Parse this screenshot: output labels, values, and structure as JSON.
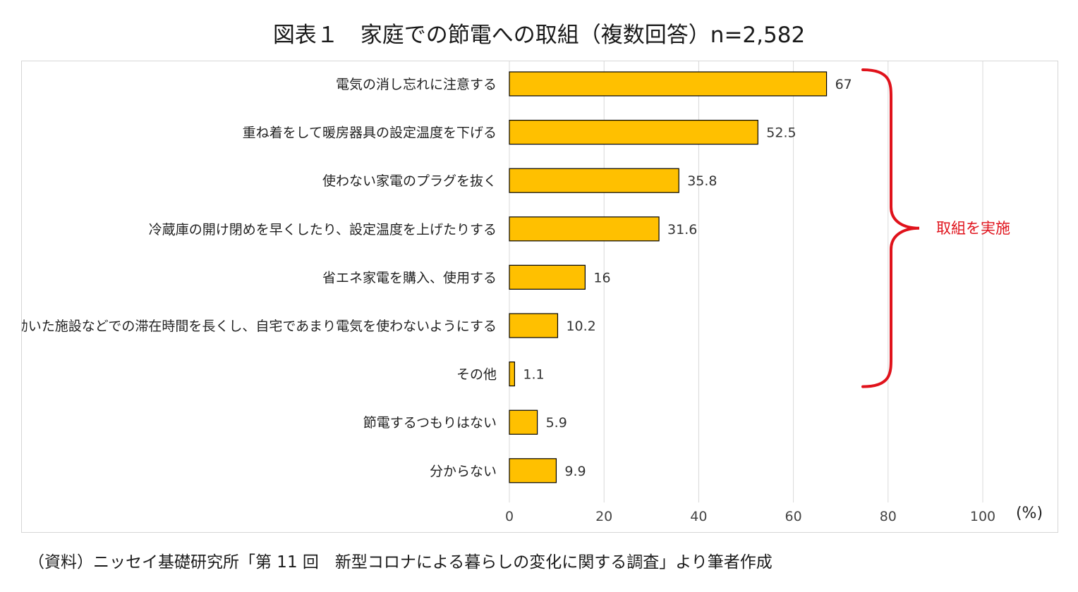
{
  "title": "図表１　家庭での節電への取組（複数回答）n=2,582",
  "source": "（資料）ニッセイ基礎研究所「第 11 回　新型コロナによる暮らしの変化に関する調査」より筆者作成",
  "chart_data": {
    "type": "bar",
    "orientation": "horizontal",
    "categories": [
      "電気の消し忘れに注意する",
      "重ね着をして暖房器具の設定温度を下げる",
      "使わない家電のプラグを抜く",
      "冷蔵庫の開け閉めを早くしたり、設定温度を上げたりする",
      "省エネ家電を購入、使用する",
      "空調の効いた施設などでの滞在時間を長くし、自宅であまり電気を使わないようにする",
      "その他",
      "節電するつもりはない",
      "分からない"
    ],
    "values": [
      67,
      52.5,
      35.8,
      31.6,
      16,
      10.2,
      1.1,
      5.9,
      9.9
    ],
    "value_labels": [
      "67",
      "52.5",
      "35.8",
      "31.6",
      "16",
      "10.2",
      "1.1",
      "5.9",
      "9.9"
    ],
    "xlim": [
      0,
      100
    ],
    "xticks": [
      "0",
      "20",
      "40",
      "60",
      "80",
      "100"
    ],
    "xunit": "(%)",
    "grid": true,
    "bar_color": "#ffc000",
    "bar_edge_color": "#000000",
    "annotation": {
      "text": "取組を実施",
      "color": "#e0121b",
      "spans_categories": [
        0,
        6
      ]
    }
  }
}
